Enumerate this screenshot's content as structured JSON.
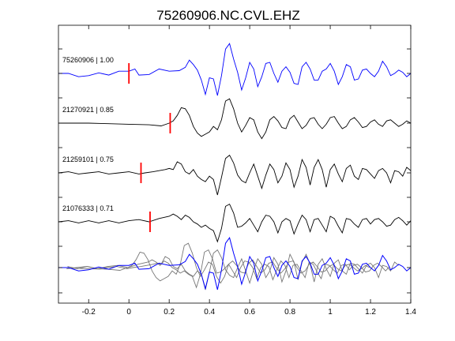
{
  "chart_data": {
    "type": "line",
    "title": "75260906.NC.CVL.EHZ",
    "xlabel": "",
    "ylabel": "",
    "xlim": [
      -0.35,
      1.4
    ],
    "x_ticks": [
      -0.2,
      0,
      0.2,
      0.4,
      0.6,
      0.8,
      1,
      1.2,
      1.4
    ],
    "x_tick_labels": [
      "-0.2",
      "0",
      "0.2",
      "0.4",
      "0.6",
      "0.8",
      "1",
      "1.2",
      "1.4"
    ],
    "grid": false,
    "colors": {
      "reference": "#0000ff",
      "trace": "#000000",
      "overlay": "#777777",
      "pick": "#ff0000"
    },
    "traces": [
      {
        "label": "75260906 | 1.00",
        "pick_time": 0.0,
        "color": "#0000ff",
        "points": [
          [
            -0.35,
            0
          ],
          [
            -0.3,
            0
          ],
          [
            -0.25,
            -0.3
          ],
          [
            -0.2,
            -0.2
          ],
          [
            -0.15,
            0.05
          ],
          [
            -0.1,
            -0.15
          ],
          [
            -0.05,
            0.2
          ],
          [
            0,
            0.2
          ],
          [
            0.03,
            0.4
          ],
          [
            0.05,
            -0.15
          ],
          [
            0.1,
            -0.1
          ],
          [
            0.15,
            0.4
          ],
          [
            0.2,
            0.2
          ],
          [
            0.25,
            0.25
          ],
          [
            0.28,
            0.55
          ],
          [
            0.3,
            1.2
          ],
          [
            0.32,
            0.8
          ],
          [
            0.34,
            0.3
          ],
          [
            0.36,
            -0.6
          ],
          [
            0.38,
            -1.9
          ],
          [
            0.4,
            -0.4
          ],
          [
            0.42,
            -0.5
          ],
          [
            0.44,
            -2.0
          ],
          [
            0.46,
            -0.2
          ],
          [
            0.48,
            2.2
          ],
          [
            0.5,
            2.7
          ],
          [
            0.52,
            1.3
          ],
          [
            0.54,
            0.1
          ],
          [
            0.56,
            -1.5
          ],
          [
            0.58,
            -0.4
          ],
          [
            0.6,
            1.0
          ],
          [
            0.62,
            0.4
          ],
          [
            0.64,
            -1.2
          ],
          [
            0.66,
            -0.3
          ],
          [
            0.68,
            0.9
          ],
          [
            0.7,
            1.0
          ],
          [
            0.72,
            0
          ],
          [
            0.74,
            -0.8
          ],
          [
            0.76,
            0.2
          ],
          [
            0.78,
            0.6
          ],
          [
            0.8,
            0.1
          ],
          [
            0.82,
            -0.9
          ],
          [
            0.84,
            -1.0
          ],
          [
            0.86,
            0.6
          ],
          [
            0.88,
            1.0
          ],
          [
            0.9,
            0.4
          ],
          [
            0.92,
            -0.6
          ],
          [
            0.94,
            -0.6
          ],
          [
            0.96,
            0.2
          ],
          [
            0.98,
            0.4
          ],
          [
            1.0,
            0.9
          ],
          [
            1.02,
            0.2
          ],
          [
            1.04,
            -1.0
          ],
          [
            1.06,
            -0.3
          ],
          [
            1.08,
            0.8
          ],
          [
            1.1,
            0.6
          ],
          [
            1.12,
            -0.6
          ],
          [
            1.14,
            -0.5
          ],
          [
            1.16,
            0.3
          ],
          [
            1.18,
            0.4
          ],
          [
            1.2,
            0
          ],
          [
            1.22,
            -0.3
          ],
          [
            1.24,
            0.2
          ],
          [
            1.26,
            1.1
          ],
          [
            1.28,
            0.6
          ],
          [
            1.3,
            -0.2
          ],
          [
            1.32,
            0
          ],
          [
            1.34,
            0.3
          ],
          [
            1.36,
            0.1
          ],
          [
            1.38,
            -0.3
          ],
          [
            1.4,
            0
          ]
        ]
      },
      {
        "label": "21270921 | 0.85",
        "pick_time": 0.205,
        "color": "#000000",
        "points": [
          [
            -0.35,
            0
          ],
          [
            -0.2,
            0
          ],
          [
            -0.1,
            -0.05
          ],
          [
            0,
            -0.1
          ],
          [
            0.1,
            -0.15
          ],
          [
            0.16,
            -0.25
          ],
          [
            0.2,
            0
          ],
          [
            0.22,
            0.2
          ],
          [
            0.24,
            0.7
          ],
          [
            0.26,
            1.4
          ],
          [
            0.28,
            1.3
          ],
          [
            0.3,
            0.7
          ],
          [
            0.32,
            -0.3
          ],
          [
            0.34,
            -0.9
          ],
          [
            0.36,
            -1.2
          ],
          [
            0.38,
            -1.0
          ],
          [
            0.4,
            -0.8
          ],
          [
            0.42,
            -0.3
          ],
          [
            0.44,
            -0.6
          ],
          [
            0.46,
            0.3
          ],
          [
            0.48,
            2.0
          ],
          [
            0.5,
            2.2
          ],
          [
            0.52,
            1.3
          ],
          [
            0.54,
            0
          ],
          [
            0.56,
            -0.8
          ],
          [
            0.58,
            -0.2
          ],
          [
            0.6,
            0.5
          ],
          [
            0.62,
            0.3
          ],
          [
            0.64,
            -0.8
          ],
          [
            0.66,
            -1.4
          ],
          [
            0.68,
            -0.8
          ],
          [
            0.7,
            0.3
          ],
          [
            0.72,
            0.6
          ],
          [
            0.74,
            0.2
          ],
          [
            0.76,
            -0.4
          ],
          [
            0.78,
            -0.5
          ],
          [
            0.8,
            0.4
          ],
          [
            0.82,
            0.7
          ],
          [
            0.84,
            0.1
          ],
          [
            0.86,
            -0.5
          ],
          [
            0.88,
            -0.2
          ],
          [
            0.9,
            0.4
          ],
          [
            0.92,
            0.5
          ],
          [
            0.94,
            -0.1
          ],
          [
            0.96,
            -0.5
          ],
          [
            0.98,
            -0.1
          ],
          [
            1.0,
            0.5
          ],
          [
            1.02,
            0.6
          ],
          [
            1.04,
            0
          ],
          [
            1.06,
            -0.5
          ],
          [
            1.08,
            -0.3
          ],
          [
            1.1,
            0.3
          ],
          [
            1.12,
            0.5
          ],
          [
            1.14,
            0.1
          ],
          [
            1.16,
            -0.4
          ],
          [
            1.18,
            -0.3
          ],
          [
            1.2,
            0.1
          ],
          [
            1.22,
            0.3
          ],
          [
            1.24,
            -0.1
          ],
          [
            1.26,
            -0.3
          ],
          [
            1.28,
            0.2
          ],
          [
            1.3,
            0.3
          ],
          [
            1.32,
            0
          ],
          [
            1.34,
            -0.3
          ],
          [
            1.36,
            -0.1
          ],
          [
            1.38,
            0.2
          ],
          [
            1.4,
            0
          ]
        ]
      },
      {
        "label": "21259101 | 0.75",
        "pick_time": 0.06,
        "color": "#000000",
        "points": [
          [
            -0.35,
            0
          ],
          [
            -0.3,
            0.1
          ],
          [
            -0.25,
            -0.1
          ],
          [
            -0.2,
            0
          ],
          [
            -0.15,
            0.1
          ],
          [
            -0.1,
            -0.1
          ],
          [
            -0.05,
            0
          ],
          [
            0,
            0.1
          ],
          [
            0.05,
            -0.1
          ],
          [
            0.08,
            0
          ],
          [
            0.12,
            0.1
          ],
          [
            0.15,
            0.2
          ],
          [
            0.18,
            0.3
          ],
          [
            0.2,
            0.4
          ],
          [
            0.22,
            0.3
          ],
          [
            0.24,
            1.0
          ],
          [
            0.26,
            0.8
          ],
          [
            0.28,
            0.1
          ],
          [
            0.3,
            -0.1
          ],
          [
            0.32,
            0.3
          ],
          [
            0.34,
            -0.3
          ],
          [
            0.36,
            -0.6
          ],
          [
            0.38,
            -0.8
          ],
          [
            0.4,
            -0.3
          ],
          [
            0.42,
            -0.6
          ],
          [
            0.44,
            -2.0
          ],
          [
            0.46,
            -0.4
          ],
          [
            0.48,
            1.3
          ],
          [
            0.5,
            1.6
          ],
          [
            0.52,
            0.9
          ],
          [
            0.54,
            -0.2
          ],
          [
            0.56,
            -0.7
          ],
          [
            0.58,
            -0.9
          ],
          [
            0.6,
            0
          ],
          [
            0.62,
            0.8
          ],
          [
            0.64,
            -0.3
          ],
          [
            0.66,
            -1.4
          ],
          [
            0.68,
            -0.2
          ],
          [
            0.7,
            0.8
          ],
          [
            0.72,
            0.3
          ],
          [
            0.74,
            -0.9
          ],
          [
            0.76,
            -0.3
          ],
          [
            0.78,
            0.9
          ],
          [
            0.8,
            0.3
          ],
          [
            0.82,
            -1.3
          ],
          [
            0.84,
            -0.3
          ],
          [
            0.86,
            1.2
          ],
          [
            0.88,
            0.5
          ],
          [
            0.9,
            -1.1
          ],
          [
            0.92,
            0.5
          ],
          [
            0.94,
            1.2
          ],
          [
            0.96,
            0.3
          ],
          [
            0.98,
            -1.3
          ],
          [
            1.0,
            0.3
          ],
          [
            1.02,
            0.8
          ],
          [
            1.04,
            -0.1
          ],
          [
            1.06,
            -0.8
          ],
          [
            1.08,
            0.4
          ],
          [
            1.1,
            0.7
          ],
          [
            1.12,
            -0.3
          ],
          [
            1.14,
            -0.6
          ],
          [
            1.16,
            0.4
          ],
          [
            1.18,
            0.3
          ],
          [
            1.2,
            -0.1
          ],
          [
            1.22,
            -0.5
          ],
          [
            1.24,
            0.2
          ],
          [
            1.26,
            0.4
          ],
          [
            1.28,
            0
          ],
          [
            1.3,
            -0.9
          ],
          [
            1.32,
            0.2
          ],
          [
            1.34,
            0.1
          ],
          [
            1.36,
            -0.3
          ],
          [
            1.38,
            0.5
          ],
          [
            1.4,
            0.2
          ]
        ]
      },
      {
        "label": "21076333 | 0.71",
        "pick_time": 0.105,
        "color": "#000000",
        "points": [
          [
            -0.35,
            0
          ],
          [
            -0.3,
            0.1
          ],
          [
            -0.25,
            -0.1
          ],
          [
            -0.2,
            0.1
          ],
          [
            -0.15,
            -0.1
          ],
          [
            -0.1,
            0.1
          ],
          [
            -0.05,
            -0.1
          ],
          [
            0,
            0.1
          ],
          [
            0.05,
            0.2
          ],
          [
            0.1,
            0
          ],
          [
            0.15,
            0.3
          ],
          [
            0.2,
            0.5
          ],
          [
            0.22,
            0.7
          ],
          [
            0.24,
            0.5
          ],
          [
            0.26,
            0.2
          ],
          [
            0.28,
            0.6
          ],
          [
            0.3,
            0.4
          ],
          [
            0.32,
            0
          ],
          [
            0.34,
            -0.2
          ],
          [
            0.36,
            -0.5
          ],
          [
            0.38,
            -0.3
          ],
          [
            0.4,
            -0.6
          ],
          [
            0.42,
            -0.8
          ],
          [
            0.44,
            -1.8
          ],
          [
            0.46,
            -0.6
          ],
          [
            0.48,
            1.4
          ],
          [
            0.5,
            1.6
          ],
          [
            0.52,
            0.8
          ],
          [
            0.54,
            -0.5
          ],
          [
            0.56,
            -0.4
          ],
          [
            0.58,
            -0.1
          ],
          [
            0.6,
            0.3
          ],
          [
            0.62,
            -0.3
          ],
          [
            0.64,
            -0.9
          ],
          [
            0.66,
            0
          ],
          [
            0.68,
            0.6
          ],
          [
            0.7,
            0.5
          ],
          [
            0.72,
            0
          ],
          [
            0.74,
            -1.0
          ],
          [
            0.76,
            0
          ],
          [
            0.78,
            0.3
          ],
          [
            0.8,
            0.1
          ],
          [
            0.82,
            -1.1
          ],
          [
            0.84,
            -0.2
          ],
          [
            0.86,
            0.6
          ],
          [
            0.88,
            0.2
          ],
          [
            0.9,
            -0.9
          ],
          [
            0.92,
            0.2
          ],
          [
            0.94,
            0.3
          ],
          [
            0.96,
            -0.3
          ],
          [
            0.98,
            -0.9
          ],
          [
            1.0,
            0.5
          ],
          [
            1.02,
            0.3
          ],
          [
            1.04,
            -0.4
          ],
          [
            1.06,
            -1.0
          ],
          [
            1.08,
            0.3
          ],
          [
            1.1,
            0.2
          ],
          [
            1.12,
            -0.2
          ],
          [
            1.14,
            -0.5
          ],
          [
            1.16,
            0.2
          ],
          [
            1.18,
            0.3
          ],
          [
            1.2,
            -0.2
          ],
          [
            1.22,
            0.2
          ],
          [
            1.24,
            0.3
          ],
          [
            1.26,
            0
          ],
          [
            1.28,
            -0.4
          ],
          [
            1.3,
            -0.3
          ],
          [
            1.32,
            0.2
          ],
          [
            1.34,
            0.4
          ],
          [
            1.36,
            0.1
          ],
          [
            1.38,
            -0.3
          ],
          [
            1.4,
            0.1
          ]
        ]
      }
    ]
  }
}
